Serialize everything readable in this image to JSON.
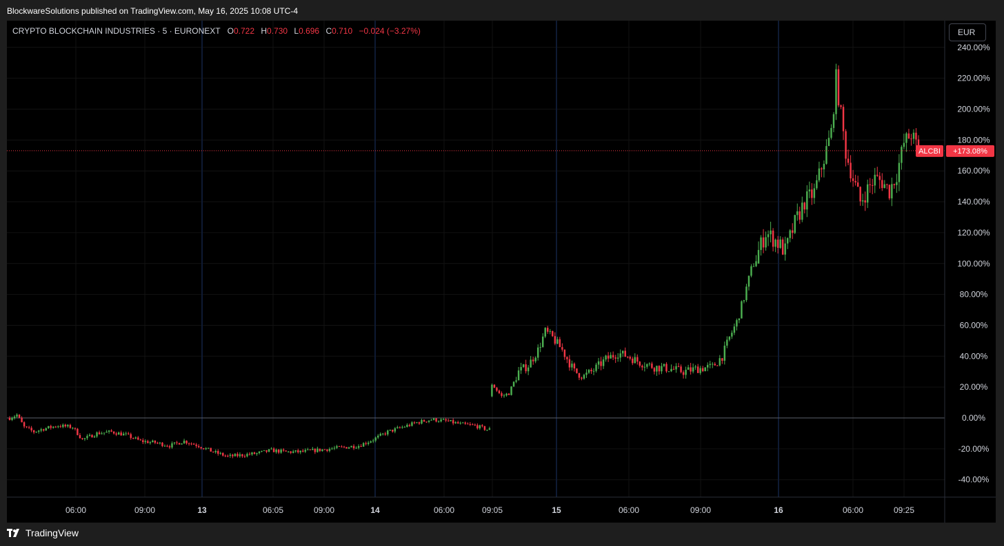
{
  "header": {
    "published_text": "BlockwareSolutions published on TradingView.com, May 16, 2025 10:08 UTC-4"
  },
  "legend": {
    "symbol": "CRYPTO BLOCKCHAIN INDUSTRIES · 5 · EURONEXT",
    "open_label": "O",
    "open": "0.722",
    "high_label": "H",
    "high": "0.730",
    "low_label": "L",
    "low": "0.696",
    "close_label": "C",
    "close": "0.710",
    "change": "−0.024 (−3.27%)"
  },
  "currency_button": "EUR",
  "price_tag": {
    "ticker": "ALCBI",
    "value": "+173.08%"
  },
  "brand": {
    "name": "TradingView"
  },
  "colors": {
    "up": "#4caf50",
    "down": "#f23645",
    "background": "#000000",
    "grid": "#121212",
    "axis_text": "#d1d4dc"
  },
  "chart_data": {
    "type": "candlestick",
    "y_unit": "%",
    "ylim": [
      -50,
      245
    ],
    "y_ticks": [
      "240.00%",
      "220.00%",
      "200.00%",
      "180.00%",
      "160.00%",
      "140.00%",
      "120.00%",
      "100.00%",
      "80.00%",
      "60.00%",
      "40.00%",
      "20.00%",
      "0.00%",
      "-20.00%",
      "-40.00%"
    ],
    "x_ticks": [
      {
        "label": "06:00",
        "bold": false
      },
      {
        "label": "09:00",
        "bold": false
      },
      {
        "label": "13",
        "bold": true
      },
      {
        "label": "06:05",
        "bold": false
      },
      {
        "label": "09:00",
        "bold": false
      },
      {
        "label": "14",
        "bold": true
      },
      {
        "label": "06:00",
        "bold": false
      },
      {
        "label": "09:05",
        "bold": false
      },
      {
        "label": "15",
        "bold": true
      },
      {
        "label": "06:00",
        "bold": false
      },
      {
        "label": "09:00",
        "bold": false
      },
      {
        "label": "16",
        "bold": true
      },
      {
        "label": "06:00",
        "bold": false
      },
      {
        "label": "09:25",
        "bold": false
      }
    ],
    "baseline": 0,
    "last_value": 173.08,
    "anchors": [
      {
        "i": 0,
        "v": 0
      },
      {
        "i": 3,
        "v": 2
      },
      {
        "i": 6,
        "v": -6
      },
      {
        "i": 10,
        "v": -9
      },
      {
        "i": 14,
        "v": -7
      },
      {
        "i": 20,
        "v": -5
      },
      {
        "i": 26,
        "v": -6
      },
      {
        "i": 30,
        "v": -14
      },
      {
        "i": 36,
        "v": -10
      },
      {
        "i": 42,
        "v": -9
      },
      {
        "i": 48,
        "v": -11
      },
      {
        "i": 54,
        "v": -15
      },
      {
        "i": 60,
        "v": -16
      },
      {
        "i": 66,
        "v": -18
      },
      {
        "i": 72,
        "v": -15
      },
      {
        "i": 78,
        "v": -18
      },
      {
        "i": 84,
        "v": -22
      },
      {
        "i": 90,
        "v": -25
      },
      {
        "i": 96,
        "v": -24
      },
      {
        "i": 102,
        "v": -23
      },
      {
        "i": 108,
        "v": -21
      },
      {
        "i": 114,
        "v": -22
      },
      {
        "i": 120,
        "v": -22
      },
      {
        "i": 126,
        "v": -21
      },
      {
        "i": 132,
        "v": -20
      },
      {
        "i": 138,
        "v": -19
      },
      {
        "i": 144,
        "v": -18
      },
      {
        "i": 150,
        "v": -14
      },
      {
        "i": 156,
        "v": -9
      },
      {
        "i": 162,
        "v": -6
      },
      {
        "i": 168,
        "v": -3
      },
      {
        "i": 174,
        "v": -1
      },
      {
        "i": 180,
        "v": -2
      },
      {
        "i": 186,
        "v": -4
      },
      {
        "i": 192,
        "v": -5
      },
      {
        "i": 198,
        "v": -8
      },
      {
        "i": 199,
        "v": 22
      },
      {
        "i": 203,
        "v": 14
      },
      {
        "i": 206,
        "v": 16
      },
      {
        "i": 210,
        "v": 30
      },
      {
        "i": 214,
        "v": 34
      },
      {
        "i": 218,
        "v": 44
      },
      {
        "i": 221,
        "v": 56
      },
      {
        "i": 224,
        "v": 52
      },
      {
        "i": 228,
        "v": 44
      },
      {
        "i": 233,
        "v": 30
      },
      {
        "i": 237,
        "v": 27
      },
      {
        "i": 241,
        "v": 31
      },
      {
        "i": 246,
        "v": 38
      },
      {
        "i": 251,
        "v": 42
      },
      {
        "i": 255,
        "v": 40
      },
      {
        "i": 260,
        "v": 36
      },
      {
        "i": 266,
        "v": 33
      },
      {
        "i": 272,
        "v": 32
      },
      {
        "i": 278,
        "v": 30
      },
      {
        "i": 284,
        "v": 32
      },
      {
        "i": 290,
        "v": 33
      },
      {
        "i": 294,
        "v": 40
      },
      {
        "i": 297,
        "v": 52
      },
      {
        "i": 300,
        "v": 62
      },
      {
        "i": 303,
        "v": 78
      },
      {
        "i": 306,
        "v": 96
      },
      {
        "i": 309,
        "v": 108
      },
      {
        "i": 312,
        "v": 120
      },
      {
        "i": 316,
        "v": 115
      },
      {
        "i": 320,
        "v": 108
      },
      {
        "i": 324,
        "v": 126
      },
      {
        "i": 328,
        "v": 140
      },
      {
        "i": 332,
        "v": 146
      },
      {
        "i": 336,
        "v": 168
      },
      {
        "i": 339,
        "v": 185
      },
      {
        "i": 341,
        "v": 220
      },
      {
        "i": 343,
        "v": 196
      },
      {
        "i": 345,
        "v": 172
      },
      {
        "i": 348,
        "v": 155
      },
      {
        "i": 351,
        "v": 140
      },
      {
        "i": 354,
        "v": 148
      },
      {
        "i": 357,
        "v": 155
      },
      {
        "i": 360,
        "v": 153
      },
      {
        "i": 363,
        "v": 147
      },
      {
        "i": 366,
        "v": 158
      },
      {
        "i": 369,
        "v": 178
      },
      {
        "i": 372,
        "v": 184
      },
      {
        "i": 375,
        "v": 173.08
      }
    ]
  }
}
